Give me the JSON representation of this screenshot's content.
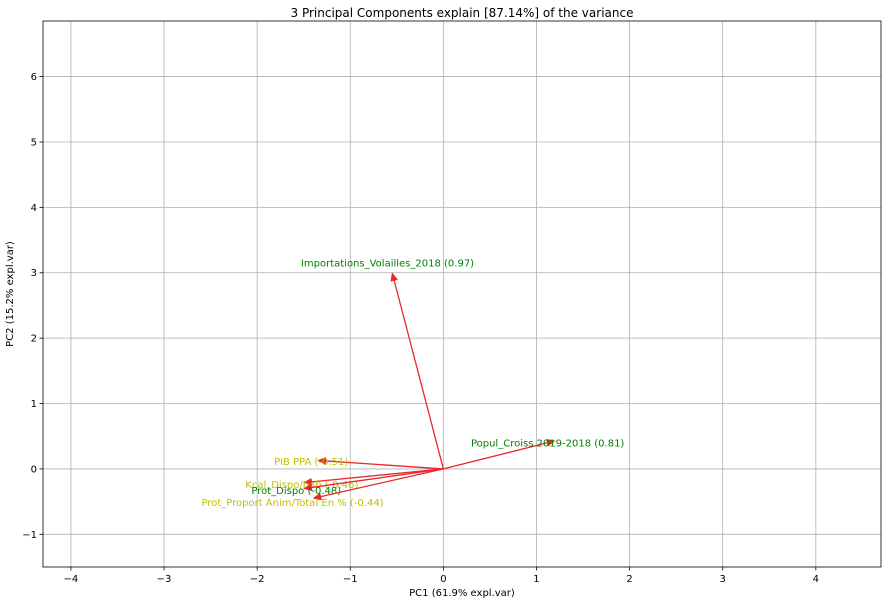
{
  "chart_data": {
    "type": "biplot",
    "title": "3 Principal Components explain [87.14%] of the variance",
    "xlabel": "PC1 (61.9% expl.var)",
    "ylabel": "PC2 (15.2% expl.var)",
    "xlim": [
      -4.3,
      4.7
    ],
    "ylim": [
      -1.5,
      6.85
    ],
    "xticks": [
      -4,
      -3,
      -2,
      -1,
      0,
      1,
      2,
      3,
      4
    ],
    "yticks": [
      -1,
      0,
      1,
      2,
      3,
      4,
      5,
      6
    ],
    "grid": true,
    "arrow_color": "#e8282b",
    "vectors": [
      {
        "x": -0.55,
        "y": 3.0,
        "label": "Importations_Volailles_2018 (0.97)",
        "label_x": -0.6,
        "label_y": 3.15,
        "color": "#008000"
      },
      {
        "x": 1.2,
        "y": 0.43,
        "label": "Popul_Croiss 2019-2018 (0.81)",
        "label_x": 1.12,
        "label_y": 0.4,
        "color": "#008000"
      },
      {
        "x": -1.35,
        "y": 0.13,
        "label": "PIB PPA (-0.51)",
        "label_x": -1.42,
        "label_y": 0.11,
        "color": "#bfbf00"
      },
      {
        "x": -1.5,
        "y": -0.21,
        "label": "Kcal_Dispo/hab (-0.46)",
        "label_x": -1.52,
        "label_y": -0.24,
        "color": "#bfbf00"
      },
      {
        "x": -1.5,
        "y": -0.3,
        "label": "Prot_Dispo (-0.48)",
        "label_x": -1.58,
        "label_y": -0.33,
        "color": "#008000"
      },
      {
        "x": -1.4,
        "y": -0.45,
        "label": "Prot_Proport Anim/Total En % (-0.44)",
        "label_x": -1.62,
        "label_y": -0.51,
        "color": "#bfbf00"
      }
    ]
  }
}
